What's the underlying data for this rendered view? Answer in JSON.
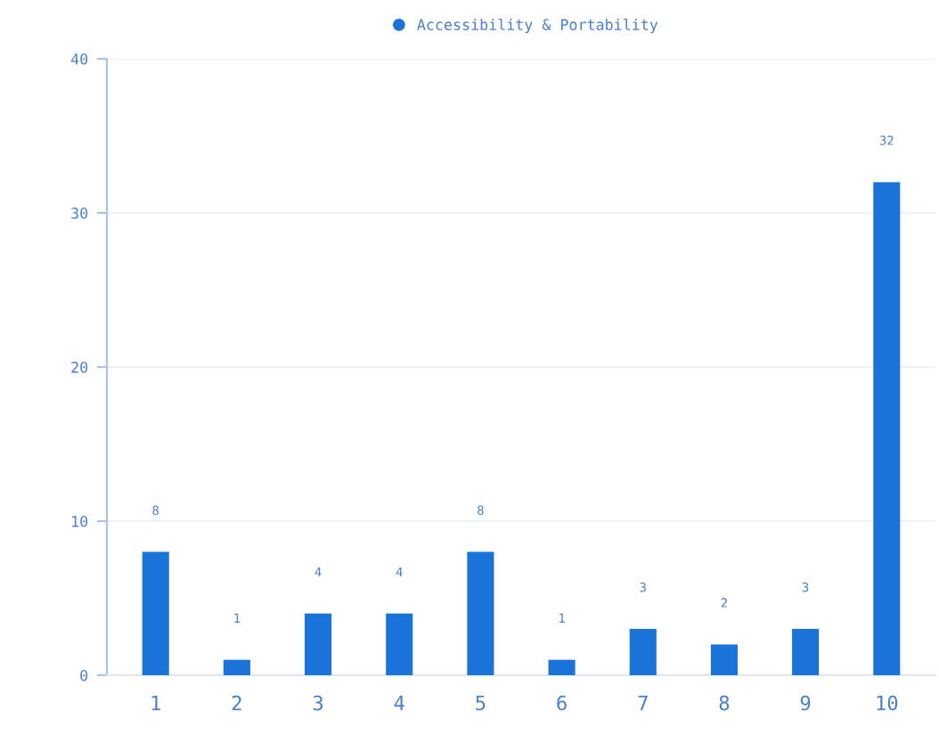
{
  "chart_data": {
    "type": "bar",
    "categories": [
      "1",
      "2",
      "3",
      "4",
      "5",
      "6",
      "7",
      "8",
      "9",
      "10"
    ],
    "series": [
      {
        "name": "Accessibility & Portability",
        "color": "#1a73d9",
        "values": [
          8,
          1,
          4,
          4,
          8,
          1,
          3,
          2,
          3,
          32
        ]
      }
    ],
    "ylim": [
      0,
      40
    ],
    "yticks": [
      0,
      10,
      20,
      30,
      40
    ],
    "grid": "y",
    "legend": "top",
    "data_labels": true
  }
}
